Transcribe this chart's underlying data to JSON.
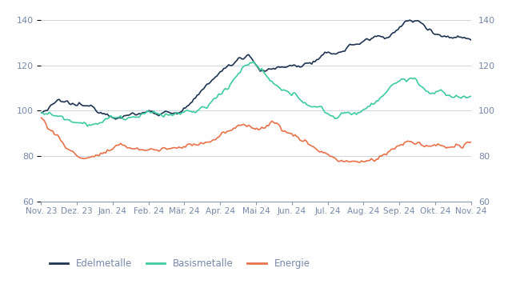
{
  "ylim": [
    60,
    145
  ],
  "yticks": [
    60,
    80,
    100,
    120,
    140
  ],
  "x_labels": [
    "Nov. 23",
    "Dez. 23",
    "Jan. 24",
    "Feb. 24",
    "Mär. 24",
    "Apr. 24",
    "Mai 24",
    "Jun. 24",
    "Jul. 24",
    "Aug. 24",
    "Sep. 24",
    "Okt. 24",
    "Nov. 24"
  ],
  "colors": {
    "edelmetalle": "#1f3352",
    "basismetalle": "#3ecba0",
    "energie": "#e8724a"
  },
  "legend": [
    "Edelmetalle",
    "Basismetalle",
    "Energie"
  ],
  "background_color": "#ffffff",
  "grid_color": "#cdd5df",
  "tick_color": "#8899aa",
  "text_color": "#7788aa",
  "line_width": 1.2
}
